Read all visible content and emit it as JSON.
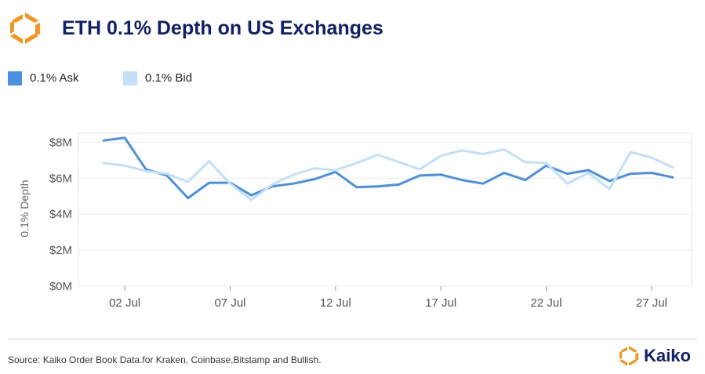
{
  "title": "ETH 0.1% Depth on US Exchanges",
  "source": "Source: Kaiko Order Book Data.for Kraken, Coinbase,Bitstamp and Bullish.",
  "brand": {
    "name": "Kaiko",
    "logo": "kaiko-logo-icon"
  },
  "colors": {
    "brand_orange": "#f7941d",
    "title_navy": "#0f1f6b",
    "ask": "#4a90e2",
    "bid": "#c2e0f9"
  },
  "chart_data": {
    "type": "line",
    "ylabel": "0.1% Depth",
    "xlabel": "",
    "ylim": [
      0,
      8.5
    ],
    "y_ticks": [
      {
        "value": 0,
        "label": "$0M"
      },
      {
        "value": 2,
        "label": "$2M"
      },
      {
        "value": 4,
        "label": "$4M"
      },
      {
        "value": 6,
        "label": "$6M"
      },
      {
        "value": 8,
        "label": "$8M"
      }
    ],
    "x_ticks": [
      {
        "value": 2,
        "label": "02 Jul"
      },
      {
        "value": 7,
        "label": "07 Jul"
      },
      {
        "value": 12,
        "label": "12 Jul"
      },
      {
        "value": 17,
        "label": "17 Jul"
      },
      {
        "value": 22,
        "label": "22 Jul"
      },
      {
        "value": 27,
        "label": "27 Jul"
      }
    ],
    "xlim": [
      -0.2,
      28.9
    ],
    "legend_position": "top-left",
    "grid": true,
    "x": [
      1,
      2,
      3,
      4,
      5,
      6,
      7,
      8,
      9,
      10,
      11,
      12,
      13,
      14,
      15,
      16,
      17,
      18,
      19,
      20,
      21,
      22,
      23,
      24,
      25,
      26,
      27,
      28
    ],
    "series": [
      {
        "name": "0.1% Ask",
        "color": "#4a90e2",
        "values": [
          8.1,
          8.25,
          6.5,
          6.15,
          4.9,
          5.75,
          5.75,
          5.05,
          5.55,
          5.7,
          5.95,
          6.35,
          5.5,
          5.55,
          5.65,
          6.15,
          6.2,
          5.9,
          5.7,
          6.3,
          5.9,
          6.7,
          6.25,
          6.45,
          5.85,
          6.25,
          6.3,
          6.05
        ]
      },
      {
        "name": "0.1% Bid",
        "color": "#c2e0f9",
        "values": [
          6.85,
          6.7,
          6.4,
          6.25,
          5.8,
          6.95,
          5.7,
          4.8,
          5.65,
          6.2,
          6.55,
          6.45,
          6.85,
          7.3,
          6.9,
          6.5,
          7.25,
          7.55,
          7.35,
          7.6,
          6.9,
          6.85,
          5.7,
          6.3,
          5.4,
          7.45,
          7.15,
          6.6
        ]
      }
    ]
  }
}
